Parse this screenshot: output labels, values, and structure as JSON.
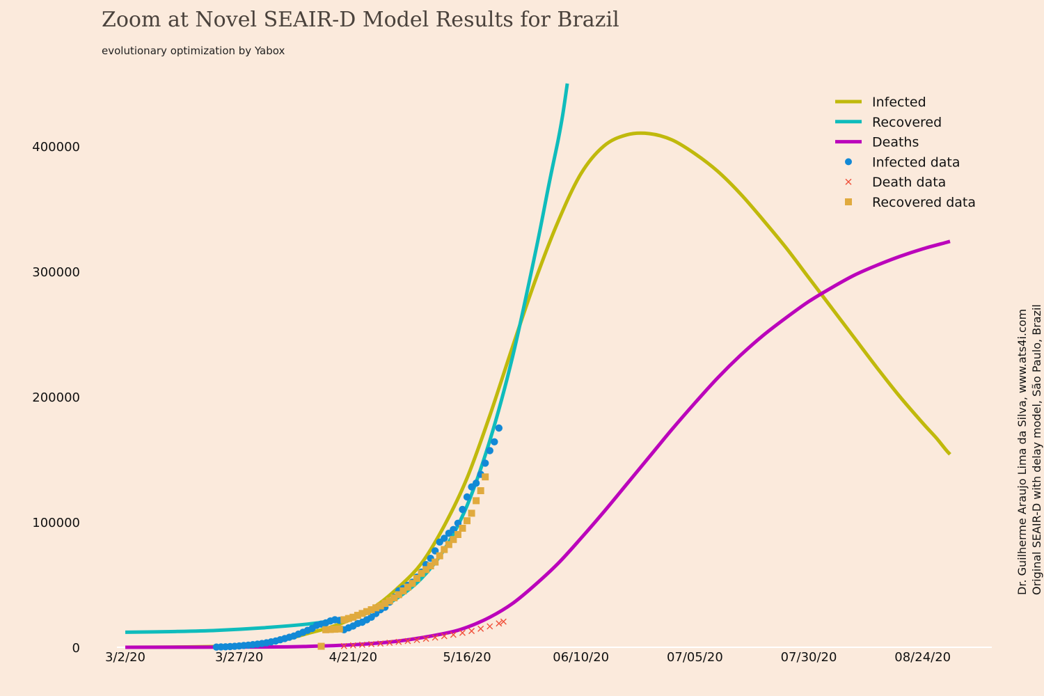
{
  "chart_data": {
    "type": "line",
    "title": "Zoom at Novel SEAIR-D Model Results for Brazil",
    "subtitle": "evolutionary optimization by Yabox",
    "credit_line1": "Dr. Guilherme Araujo Lima da Silva, www.ats4i.com",
    "credit_line2": "Original SEAIR-D with delay model, São Paulo, Brazil",
    "xlabel": "",
    "ylabel": "",
    "x_start_date": "3/2/20",
    "x_range_days": [
      -1,
      192
    ],
    "ylim": [
      0,
      450000
    ],
    "x_ticks": [
      {
        "day": 0,
        "label": "3/2/20"
      },
      {
        "day": 25,
        "label": "3/27/20"
      },
      {
        "day": 50,
        "label": "4/21/20"
      },
      {
        "day": 75,
        "label": "5/16/20"
      },
      {
        "day": 100,
        "label": "06/10/20"
      },
      {
        "day": 125,
        "label": "07/05/20"
      },
      {
        "day": 150,
        "label": "07/30/20"
      },
      {
        "day": 175,
        "label": "08/24/20"
      }
    ],
    "y_ticks": [
      {
        "value": 0,
        "label": "0"
      },
      {
        "value": 100000,
        "label": "100000"
      },
      {
        "value": 200000,
        "label": "200000"
      },
      {
        "value": 300000,
        "label": "300000"
      },
      {
        "value": 400000,
        "label": "400000"
      }
    ],
    "grid": false,
    "legend_position": "top-right",
    "legend": [
      {
        "label": "Infected",
        "kind": "line",
        "color": "#c0b90c"
      },
      {
        "label": "Recovered",
        "kind": "line",
        "color": "#0fbcbc"
      },
      {
        "label": "Deaths",
        "kind": "line",
        "color": "#bb05bb"
      },
      {
        "label": "Infected data",
        "kind": "circle",
        "color": "#1289d6"
      },
      {
        "label": "Death data",
        "kind": "x",
        "color": "#f0503a"
      },
      {
        "label": "Recovered data",
        "kind": "square",
        "color": "#e0aa3e"
      }
    ],
    "series": [
      {
        "name": "Infected",
        "kind": "line",
        "color": "#c0b90c",
        "points": [
          [
            0,
            0
          ],
          [
            10,
            150
          ],
          [
            20,
            600
          ],
          [
            25,
            1200
          ],
          [
            30,
            3000
          ],
          [
            35,
            6000
          ],
          [
            40,
            11000
          ],
          [
            45,
            16000
          ],
          [
            50,
            23000
          ],
          [
            55,
            33000
          ],
          [
            60,
            48000
          ],
          [
            65,
            67000
          ],
          [
            70,
            97000
          ],
          [
            75,
            135000
          ],
          [
            80,
            185000
          ],
          [
            85,
            240000
          ],
          [
            90,
            293000
          ],
          [
            95,
            340000
          ],
          [
            100,
            378000
          ],
          [
            105,
            400000
          ],
          [
            110,
            409000
          ],
          [
            115,
            410000
          ],
          [
            120,
            405000
          ],
          [
            125,
            394000
          ],
          [
            130,
            380000
          ],
          [
            135,
            362000
          ],
          [
            140,
            341000
          ],
          [
            145,
            319000
          ],
          [
            150,
            295000
          ],
          [
            155,
            271000
          ],
          [
            160,
            247000
          ],
          [
            165,
            223000
          ],
          [
            170,
            200000
          ],
          [
            175,
            179000
          ],
          [
            178,
            167000
          ],
          [
            180,
            158000
          ],
          [
            181,
            154000
          ]
        ]
      },
      {
        "name": "Recovered",
        "kind": "line",
        "color": "#0fbcbc",
        "points": [
          [
            0,
            12000
          ],
          [
            10,
            12500
          ],
          [
            20,
            13500
          ],
          [
            30,
            15500
          ],
          [
            40,
            18500
          ],
          [
            45,
            21000
          ],
          [
            50,
            24000
          ],
          [
            55,
            30000
          ],
          [
            60,
            40000
          ],
          [
            65,
            55000
          ],
          [
            70,
            78000
          ],
          [
            75,
            113000
          ],
          [
            80,
            165000
          ],
          [
            85,
            232000
          ],
          [
            90,
            315000
          ],
          [
            93,
            370000
          ],
          [
            95,
            405000
          ],
          [
            96,
            425000
          ],
          [
            97,
            450000
          ]
        ]
      },
      {
        "name": "Deaths",
        "kind": "line",
        "color": "#bb05bb",
        "points": [
          [
            0,
            0
          ],
          [
            30,
            200
          ],
          [
            40,
            700
          ],
          [
            50,
            2000
          ],
          [
            60,
            5000
          ],
          [
            70,
            11000
          ],
          [
            75,
            16000
          ],
          [
            80,
            24000
          ],
          [
            85,
            35000
          ],
          [
            90,
            50000
          ],
          [
            95,
            67000
          ],
          [
            100,
            87000
          ],
          [
            105,
            108000
          ],
          [
            110,
            130000
          ],
          [
            115,
            152000
          ],
          [
            120,
            174000
          ],
          [
            125,
            195000
          ],
          [
            130,
            215000
          ],
          [
            135,
            233000
          ],
          [
            140,
            249000
          ],
          [
            145,
            263000
          ],
          [
            150,
            276000
          ],
          [
            155,
            287000
          ],
          [
            160,
            297000
          ],
          [
            165,
            305000
          ],
          [
            170,
            312000
          ],
          [
            175,
            318000
          ],
          [
            180,
            323000
          ],
          [
            181,
            324000
          ]
        ]
      },
      {
        "name": "Infected data",
        "kind": "circle",
        "color": "#1289d6",
        "points": [
          [
            20,
            200
          ],
          [
            21,
            300
          ],
          [
            22,
            400
          ],
          [
            23,
            600
          ],
          [
            24,
            800
          ],
          [
            25,
            1100
          ],
          [
            26,
            1400
          ],
          [
            27,
            1700
          ],
          [
            28,
            2100
          ],
          [
            29,
            2500
          ],
          [
            30,
            3000
          ],
          [
            31,
            3600
          ],
          [
            32,
            4300
          ],
          [
            33,
            5000
          ],
          [
            34,
            6000
          ],
          [
            35,
            7000
          ],
          [
            36,
            8000
          ],
          [
            37,
            9000
          ],
          [
            38,
            10500
          ],
          [
            39,
            12000
          ],
          [
            40,
            13500
          ],
          [
            41,
            15000
          ],
          [
            42,
            17500
          ],
          [
            43,
            18500
          ],
          [
            44,
            19500
          ],
          [
            45,
            21000
          ],
          [
            46,
            22000
          ],
          [
            47,
            21500
          ],
          [
            48,
            14000
          ],
          [
            49,
            15500
          ],
          [
            50,
            17000
          ],
          [
            51,
            19000
          ],
          [
            52,
            20000
          ],
          [
            53,
            22000
          ],
          [
            54,
            24000
          ],
          [
            55,
            27000
          ],
          [
            56,
            30000
          ],
          [
            57,
            32000
          ],
          [
            58,
            36000
          ],
          [
            59,
            40000
          ],
          [
            60,
            45000
          ],
          [
            61,
            47000
          ],
          [
            62,
            49500
          ],
          [
            63,
            52000
          ],
          [
            64,
            56000
          ],
          [
            65,
            60000
          ],
          [
            66,
            66000
          ],
          [
            67,
            71000
          ],
          [
            68,
            77000
          ],
          [
            69,
            84000
          ],
          [
            70,
            87000
          ],
          [
            71,
            91000
          ],
          [
            72,
            94000
          ],
          [
            73,
            99000
          ],
          [
            74,
            110000
          ],
          [
            75,
            120000
          ],
          [
            76,
            128000
          ],
          [
            77,
            131000
          ],
          [
            78,
            138000
          ],
          [
            79,
            147000
          ],
          [
            80,
            157000
          ],
          [
            81,
            164000
          ],
          [
            82,
            175000
          ]
        ]
      },
      {
        "name": "Death data",
        "kind": "x",
        "color": "#f0503a",
        "points": [
          [
            48,
            1000
          ],
          [
            50,
            1500
          ],
          [
            52,
            2000
          ],
          [
            54,
            2500
          ],
          [
            56,
            3000
          ],
          [
            58,
            3600
          ],
          [
            60,
            4300
          ],
          [
            62,
            5000
          ],
          [
            64,
            5800
          ],
          [
            66,
            6800
          ],
          [
            68,
            7800
          ],
          [
            70,
            8900
          ],
          [
            72,
            10000
          ],
          [
            74,
            11500
          ],
          [
            76,
            13000
          ],
          [
            78,
            14800
          ],
          [
            80,
            16700
          ],
          [
            82,
            19000
          ],
          [
            83,
            20500
          ]
        ]
      },
      {
        "name": "Recovered data",
        "kind": "square",
        "color": "#e0aa3e",
        "points": [
          [
            43,
            800
          ],
          [
            44,
            14000
          ],
          [
            45,
            14200
          ],
          [
            46,
            14400
          ],
          [
            47,
            14600
          ],
          [
            48,
            22000
          ],
          [
            49,
            23000
          ],
          [
            50,
            24000
          ],
          [
            51,
            25500
          ],
          [
            52,
            27000
          ],
          [
            53,
            28500
          ],
          [
            54,
            30000
          ],
          [
            55,
            31500
          ],
          [
            56,
            33000
          ],
          [
            57,
            35000
          ],
          [
            58,
            37000
          ],
          [
            59,
            39500
          ],
          [
            60,
            42000
          ],
          [
            61,
            45000
          ],
          [
            62,
            48000
          ],
          [
            63,
            51000
          ],
          [
            64,
            55000
          ],
          [
            65,
            59000
          ],
          [
            66,
            62000
          ],
          [
            67,
            65000
          ],
          [
            68,
            68000
          ],
          [
            69,
            73000
          ],
          [
            70,
            78000
          ],
          [
            71,
            82000
          ],
          [
            72,
            86000
          ],
          [
            73,
            90000
          ],
          [
            74,
            95000
          ],
          [
            75,
            101000
          ],
          [
            76,
            107000
          ],
          [
            77,
            117000
          ],
          [
            78,
            125000
          ],
          [
            79,
            136000
          ]
        ]
      }
    ]
  }
}
